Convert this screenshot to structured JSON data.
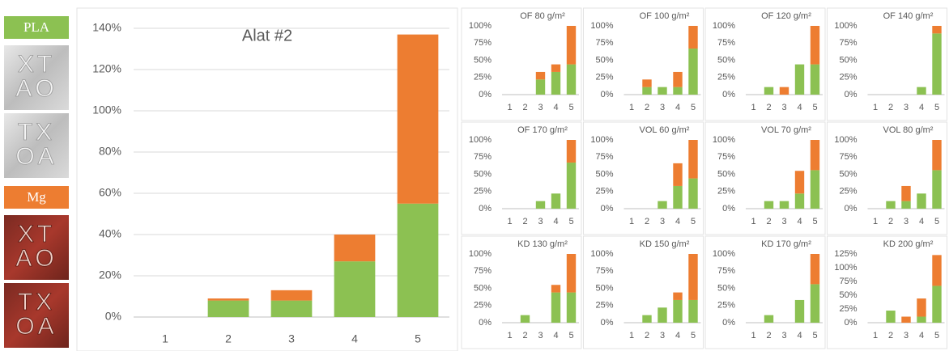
{
  "chart_data": [
    {
      "type": "bar",
      "stacked": true,
      "title": "Alat #2",
      "grid": true,
      "categories": [
        "1",
        "2",
        "3",
        "4",
        "5"
      ],
      "series": [
        {
          "name": "PLA",
          "color": "#8cc152",
          "values": [
            0,
            8,
            8,
            27,
            55
          ],
          "samples": [
            [
              "XT",
              "AO"
            ],
            [
              "TX",
              "OA"
            ]
          ]
        },
        {
          "name": "Mg",
          "color": "#ed7d31",
          "values": [
            0,
            1,
            5,
            13,
            82
          ],
          "samples": [
            [
              "XT",
              "AO"
            ],
            [
              "TX",
              "OA"
            ]
          ]
        }
      ],
      "ylim": [
        0,
        140
      ],
      "yticks": [
        {
          "value": 0,
          "label": "0%"
        },
        {
          "value": 20,
          "label": "20%"
        },
        {
          "value": 40,
          "label": "40%"
        },
        {
          "value": 60,
          "label": "60%"
        },
        {
          "value": 80,
          "label": "80%"
        },
        {
          "value": 100,
          "label": "100%"
        },
        {
          "value": 120,
          "label": "120%"
        },
        {
          "value": 140,
          "label": "140%"
        }
      ]
    },
    {
      "type": "bar",
      "stacked": true,
      "title": "OF 80 g/m²",
      "grid": false,
      "categories": [
        "1",
        "2",
        "3",
        "4",
        "5"
      ],
      "series": [
        {
          "color": "#8cc152",
          "values": [
            0,
            0,
            22,
            33,
            44
          ]
        },
        {
          "color": "#ed7d31",
          "values": [
            0,
            0,
            11,
            11,
            56
          ]
        }
      ],
      "ylim": [
        0,
        100
      ],
      "yticks": [
        {
          "value": 0,
          "label": "0%"
        },
        {
          "value": 25,
          "label": "25%"
        },
        {
          "value": 50,
          "label": "50%"
        },
        {
          "value": 75,
          "label": "75%"
        },
        {
          "value": 100,
          "label": "100%"
        }
      ]
    },
    {
      "type": "bar",
      "stacked": true,
      "title": "OF 100 g/m²",
      "grid": false,
      "categories": [
        "1",
        "2",
        "3",
        "4",
        "5"
      ],
      "series": [
        {
          "color": "#8cc152",
          "values": [
            0,
            11,
            11,
            11,
            67
          ]
        },
        {
          "color": "#ed7d31",
          "values": [
            0,
            11,
            0,
            22,
            33
          ]
        }
      ],
      "ylim": [
        0,
        100
      ],
      "yticks": [
        {
          "value": 0,
          "label": "0%"
        },
        {
          "value": 25,
          "label": "25%"
        },
        {
          "value": 50,
          "label": "50%"
        },
        {
          "value": 75,
          "label": "75%"
        },
        {
          "value": 100,
          "label": "100%"
        }
      ]
    },
    {
      "type": "bar",
      "stacked": true,
      "title": "OF 120 g/m²",
      "grid": false,
      "categories": [
        "1",
        "2",
        "3",
        "4",
        "5"
      ],
      "series": [
        {
          "color": "#8cc152",
          "values": [
            0,
            11,
            0,
            44,
            44
          ]
        },
        {
          "color": "#ed7d31",
          "values": [
            0,
            0,
            11,
            0,
            56
          ]
        }
      ],
      "ylim": [
        0,
        100
      ],
      "yticks": [
        {
          "value": 0,
          "label": "0%"
        },
        {
          "value": 25,
          "label": "25%"
        },
        {
          "value": 50,
          "label": "50%"
        },
        {
          "value": 75,
          "label": "75%"
        },
        {
          "value": 100,
          "label": "100%"
        }
      ]
    },
    {
      "type": "bar",
      "stacked": true,
      "title": "OF 140 g/m²",
      "grid": false,
      "categories": [
        "1",
        "2",
        "3",
        "4",
        "5"
      ],
      "series": [
        {
          "color": "#8cc152",
          "values": [
            0,
            0,
            0,
            11,
            89
          ]
        },
        {
          "color": "#ed7d31",
          "values": [
            0,
            0,
            0,
            0,
            11
          ]
        }
      ],
      "ylim": [
        0,
        100
      ],
      "yticks": [
        {
          "value": 0,
          "label": "0%"
        },
        {
          "value": 25,
          "label": "25%"
        },
        {
          "value": 50,
          "label": "50%"
        },
        {
          "value": 75,
          "label": "75%"
        },
        {
          "value": 100,
          "label": "100%"
        }
      ]
    },
    {
      "type": "bar",
      "stacked": true,
      "title": "OF 170 g/m²",
      "grid": false,
      "categories": [
        "1",
        "2",
        "3",
        "4",
        "5"
      ],
      "series": [
        {
          "color": "#8cc152",
          "values": [
            0,
            0,
            11,
            22,
            67
          ]
        },
        {
          "color": "#ed7d31",
          "values": [
            0,
            0,
            0,
            0,
            33
          ]
        }
      ],
      "ylim": [
        0,
        100
      ],
      "yticks": [
        {
          "value": 0,
          "label": "0%"
        },
        {
          "value": 25,
          "label": "25%"
        },
        {
          "value": 50,
          "label": "50%"
        },
        {
          "value": 75,
          "label": "75%"
        },
        {
          "value": 100,
          "label": "100%"
        }
      ]
    },
    {
      "type": "bar",
      "stacked": true,
      "title": "VOL 60 g/m²",
      "grid": false,
      "categories": [
        "1",
        "2",
        "3",
        "4",
        "5"
      ],
      "series": [
        {
          "color": "#8cc152",
          "values": [
            0,
            0,
            11,
            33,
            44
          ]
        },
        {
          "color": "#ed7d31",
          "values": [
            0,
            0,
            0,
            33,
            56
          ]
        }
      ],
      "ylim": [
        0,
        100
      ],
      "yticks": [
        {
          "value": 0,
          "label": "0%"
        },
        {
          "value": 25,
          "label": "25%"
        },
        {
          "value": 50,
          "label": "50%"
        },
        {
          "value": 75,
          "label": "75%"
        },
        {
          "value": 100,
          "label": "100%"
        }
      ]
    },
    {
      "type": "bar",
      "stacked": true,
      "title": "VOL 70 g/m²",
      "grid": false,
      "categories": [
        "1",
        "2",
        "3",
        "4",
        "5"
      ],
      "series": [
        {
          "color": "#8cc152",
          "values": [
            0,
            11,
            11,
            22,
            56
          ]
        },
        {
          "color": "#ed7d31",
          "values": [
            0,
            0,
            0,
            33,
            44
          ]
        }
      ],
      "ylim": [
        0,
        100
      ],
      "yticks": [
        {
          "value": 0,
          "label": "0%"
        },
        {
          "value": 25,
          "label": "25%"
        },
        {
          "value": 50,
          "label": "50%"
        },
        {
          "value": 75,
          "label": "75%"
        },
        {
          "value": 100,
          "label": "100%"
        }
      ]
    },
    {
      "type": "bar",
      "stacked": true,
      "title": "VOL 80 g/m²",
      "grid": false,
      "categories": [
        "1",
        "2",
        "3",
        "4",
        "5"
      ],
      "series": [
        {
          "color": "#8cc152",
          "values": [
            0,
            11,
            11,
            22,
            56
          ]
        },
        {
          "color": "#ed7d31",
          "values": [
            0,
            0,
            22,
            0,
            44
          ]
        }
      ],
      "ylim": [
        0,
        100
      ],
      "yticks": [
        {
          "value": 0,
          "label": "0%"
        },
        {
          "value": 25,
          "label": "25%"
        },
        {
          "value": 50,
          "label": "50%"
        },
        {
          "value": 75,
          "label": "75%"
        },
        {
          "value": 100,
          "label": "100%"
        }
      ]
    },
    {
      "type": "bar",
      "stacked": true,
      "title": "KD 130 g/m²",
      "grid": false,
      "categories": [
        "1",
        "2",
        "3",
        "4",
        "5"
      ],
      "series": [
        {
          "color": "#8cc152",
          "values": [
            0,
            11,
            0,
            44,
            44
          ]
        },
        {
          "color": "#ed7d31",
          "values": [
            0,
            0,
            0,
            11,
            56
          ]
        }
      ],
      "ylim": [
        0,
        100
      ],
      "yticks": [
        {
          "value": 0,
          "label": "0%"
        },
        {
          "value": 25,
          "label": "25%"
        },
        {
          "value": 50,
          "label": "50%"
        },
        {
          "value": 75,
          "label": "75%"
        },
        {
          "value": 100,
          "label": "100%"
        }
      ]
    },
    {
      "type": "bar",
      "stacked": true,
      "title": "KD 150 g/m²",
      "grid": false,
      "categories": [
        "1",
        "2",
        "3",
        "4",
        "5"
      ],
      "series": [
        {
          "color": "#8cc152",
          "values": [
            0,
            11,
            22,
            33,
            33
          ]
        },
        {
          "color": "#ed7d31",
          "values": [
            0,
            0,
            0,
            11,
            67
          ]
        }
      ],
      "ylim": [
        0,
        100
      ],
      "yticks": [
        {
          "value": 0,
          "label": "0%"
        },
        {
          "value": 25,
          "label": "25%"
        },
        {
          "value": 50,
          "label": "50%"
        },
        {
          "value": 75,
          "label": "75%"
        },
        {
          "value": 100,
          "label": "100%"
        }
      ]
    },
    {
      "type": "bar",
      "stacked": true,
      "title": "KD 170 g/m²",
      "grid": false,
      "categories": [
        "1",
        "2",
        "3",
        "4",
        "5"
      ],
      "series": [
        {
          "color": "#8cc152",
          "values": [
            0,
            11,
            0,
            33,
            56
          ]
        },
        {
          "color": "#ed7d31",
          "values": [
            0,
            0,
            0,
            0,
            44
          ]
        }
      ],
      "ylim": [
        0,
        100
      ],
      "yticks": [
        {
          "value": 0,
          "label": "0%"
        },
        {
          "value": 25,
          "label": "25%"
        },
        {
          "value": 50,
          "label": "50%"
        },
        {
          "value": 75,
          "label": "75%"
        },
        {
          "value": 100,
          "label": "100%"
        }
      ]
    },
    {
      "type": "bar",
      "stacked": true,
      "title": "KD 200 g/m²",
      "grid": false,
      "categories": [
        "1",
        "2",
        "3",
        "4",
        "5"
      ],
      "series": [
        {
          "color": "#8cc152",
          "values": [
            0,
            22,
            0,
            11,
            67
          ]
        },
        {
          "color": "#ed7d31",
          "values": [
            0,
            0,
            11,
            33,
            56
          ]
        }
      ],
      "ylim": [
        0,
        125
      ],
      "yticks": [
        {
          "value": 0,
          "label": "0%"
        },
        {
          "value": 25,
          "label": "25%"
        },
        {
          "value": 50,
          "label": "50%"
        },
        {
          "value": 75,
          "label": "75%"
        },
        {
          "value": 100,
          "label": "100%"
        },
        {
          "value": 125,
          "label": "125%"
        }
      ]
    }
  ]
}
